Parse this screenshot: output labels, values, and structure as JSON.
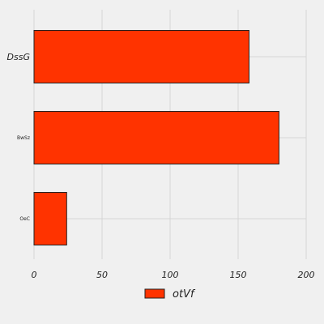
{
  "chart_data": {
    "type": "bar",
    "orientation": "horizontal",
    "categories": [
      "DssG",
      "BwSz",
      "OeC"
    ],
    "series": [
      {
        "name": "otVf",
        "values": [
          158,
          180,
          24
        ]
      }
    ],
    "xlim": [
      0,
      200
    ],
    "xticks": [
      0,
      50,
      100,
      150,
      200
    ],
    "xlabel": "",
    "ylabel": "",
    "title": "",
    "grid": true,
    "legend": "bottom-center",
    "bar_color": "#ff3300",
    "bar_edge_color": "#222222",
    "grid_color": "#d6d6d6",
    "background": "#f0f0f0"
  }
}
